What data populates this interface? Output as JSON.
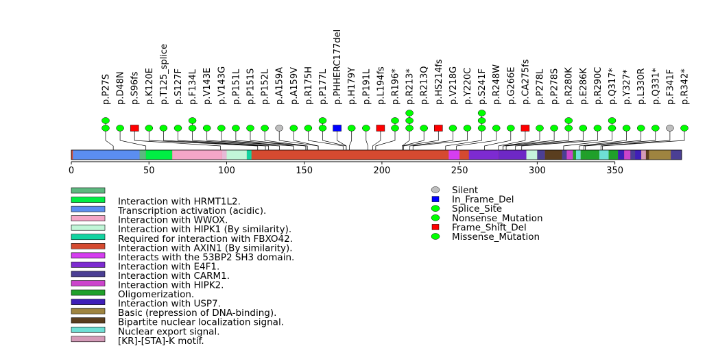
{
  "chart_data": {
    "type": "lollipop",
    "protein_length": 393,
    "axis": {
      "ticks": [
        0,
        50,
        100,
        150,
        200,
        250,
        300,
        350
      ]
    },
    "colors": {
      "Silent": "#bebebe",
      "In_Frame_Del": "#0000ff",
      "Splice_Site": "#00ff00",
      "Nonsense_Mutation": "#00ff00",
      "Frame_Shift_Del": "#ff0000",
      "Missense_Mutation": "#00ff00"
    },
    "mutations": [
      {
        "label": "p.P27S",
        "pos": 27,
        "types": [
          "Missense_Mutation",
          "Missense_Mutation"
        ]
      },
      {
        "label": "p.D48N",
        "pos": 48,
        "types": [
          "Missense_Mutation"
        ]
      },
      {
        "label": "p.S96fs",
        "pos": 96,
        "types": [
          "Frame_Shift_Del"
        ]
      },
      {
        "label": "p.K120E",
        "pos": 120,
        "types": [
          "Missense_Mutation"
        ]
      },
      {
        "label": "p.T125_splice",
        "pos": 125,
        "types": [
          "Splice_Site"
        ]
      },
      {
        "label": "p.S127F",
        "pos": 127,
        "types": [
          "Missense_Mutation"
        ]
      },
      {
        "label": "p.F134L",
        "pos": 134,
        "types": [
          "Missense_Mutation",
          "Missense_Mutation"
        ]
      },
      {
        "label": "p.V143E",
        "pos": 143,
        "types": [
          "Missense_Mutation"
        ]
      },
      {
        "label": "p.V143G",
        "pos": 143,
        "types": [
          "Missense_Mutation"
        ]
      },
      {
        "label": "p.P151L",
        "pos": 151,
        "types": [
          "Missense_Mutation"
        ]
      },
      {
        "label": "p.P151S",
        "pos": 151,
        "types": [
          "Missense_Mutation"
        ]
      },
      {
        "label": "p.P152L",
        "pos": 152,
        "types": [
          "Missense_Mutation"
        ]
      },
      {
        "label": "p.A159A",
        "pos": 159,
        "types": [
          "Silent"
        ]
      },
      {
        "label": "p.A159V",
        "pos": 159,
        "types": [
          "Missense_Mutation"
        ]
      },
      {
        "label": "p.R175H",
        "pos": 175,
        "types": [
          "Missense_Mutation"
        ]
      },
      {
        "label": "p.P177L",
        "pos": 177,
        "types": [
          "Missense_Mutation",
          "Missense_Mutation"
        ]
      },
      {
        "label": "p.PHHERC177del",
        "pos": 177,
        "types": [
          "In_Frame_Del"
        ]
      },
      {
        "label": "p.H179Y",
        "pos": 179,
        "types": [
          "Missense_Mutation"
        ]
      },
      {
        "label": "p.P191L",
        "pos": 191,
        "types": [
          "Missense_Mutation"
        ]
      },
      {
        "label": "p.L194fs",
        "pos": 194,
        "types": [
          "Frame_Shift_Del"
        ]
      },
      {
        "label": "p.R196*",
        "pos": 196,
        "types": [
          "Nonsense_Mutation",
          "Nonsense_Mutation"
        ]
      },
      {
        "label": "p.R213*",
        "pos": 213,
        "types": [
          "Nonsense_Mutation",
          "Nonsense_Mutation",
          "Nonsense_Mutation"
        ]
      },
      {
        "label": "p.R213Q",
        "pos": 213,
        "types": [
          "Missense_Mutation"
        ]
      },
      {
        "label": "p.HS214fs",
        "pos": 214,
        "types": [
          "Frame_Shift_Del"
        ]
      },
      {
        "label": "p.V218G",
        "pos": 218,
        "types": [
          "Missense_Mutation"
        ]
      },
      {
        "label": "p.Y220C",
        "pos": 220,
        "types": [
          "Missense_Mutation"
        ]
      },
      {
        "label": "p.S241F",
        "pos": 241,
        "types": [
          "Missense_Mutation",
          "Missense_Mutation",
          "Missense_Mutation"
        ]
      },
      {
        "label": "p.R248W",
        "pos": 248,
        "types": [
          "Missense_Mutation"
        ]
      },
      {
        "label": "p.G266E",
        "pos": 266,
        "types": [
          "Missense_Mutation"
        ]
      },
      {
        "label": "p.CA275fs",
        "pos": 275,
        "types": [
          "Frame_Shift_Del"
        ]
      },
      {
        "label": "p.P278L",
        "pos": 278,
        "types": [
          "Missense_Mutation"
        ]
      },
      {
        "label": "p.P278S",
        "pos": 278,
        "types": [
          "Missense_Mutation"
        ]
      },
      {
        "label": "p.R280K",
        "pos": 280,
        "types": [
          "Missense_Mutation",
          "Missense_Mutation"
        ]
      },
      {
        "label": "p.E286K",
        "pos": 286,
        "types": [
          "Missense_Mutation"
        ]
      },
      {
        "label": "p.R290C",
        "pos": 290,
        "types": [
          "Missense_Mutation"
        ]
      },
      {
        "label": "p.Q317*",
        "pos": 317,
        "types": [
          "Nonsense_Mutation",
          "Nonsense_Mutation"
        ]
      },
      {
        "label": "p.Y327*",
        "pos": 327,
        "types": [
          "Nonsense_Mutation"
        ]
      },
      {
        "label": "p.L330R",
        "pos": 330,
        "types": [
          "Missense_Mutation"
        ]
      },
      {
        "label": "p.Q331*",
        "pos": 331,
        "types": [
          "Nonsense_Mutation"
        ]
      },
      {
        "label": "p.F341F",
        "pos": 341,
        "types": [
          "Silent"
        ]
      },
      {
        "label": "p.R342*",
        "pos": 342,
        "types": [
          "Nonsense_Mutation"
        ]
      }
    ],
    "regions": [
      {
        "start": 0,
        "end": 393,
        "color": "#d54a30"
      },
      {
        "start": 1,
        "end": 44,
        "color": "#5b8ef0"
      },
      {
        "start": 44,
        "end": 48,
        "color": "#5db87f"
      },
      {
        "start": 48,
        "end": 65,
        "color": "#00ee44"
      },
      {
        "start": 65,
        "end": 97,
        "color": "#f4a6c8"
      },
      {
        "start": 97,
        "end": 100,
        "color": "#e7b8d6"
      },
      {
        "start": 100,
        "end": 113,
        "color": "#c1f6d8"
      },
      {
        "start": 113,
        "end": 116,
        "color": "#13d3a0"
      },
      {
        "start": 243,
        "end": 250,
        "color": "#d53ef0"
      },
      {
        "start": 250,
        "end": 256,
        "color": "#d54a30"
      },
      {
        "start": 256,
        "end": 275,
        "color": "#7d2bd1"
      },
      {
        "start": 275,
        "end": 293,
        "color": "#6e28c6"
      },
      {
        "start": 293,
        "end": 300,
        "color": "#c6f4dc"
      },
      {
        "start": 300,
        "end": 305,
        "color": "#4b3f94"
      },
      {
        "start": 305,
        "end": 316,
        "color": "#5a3e1f"
      },
      {
        "start": 316,
        "end": 319,
        "color": "#4b3f94"
      },
      {
        "start": 319,
        "end": 323,
        "color": "#cc44cc"
      },
      {
        "start": 323,
        "end": 325,
        "color": "#20a02a"
      },
      {
        "start": 325,
        "end": 328,
        "color": "#6ee0d6"
      },
      {
        "start": 328,
        "end": 331,
        "color": "#20a02a"
      },
      {
        "start": 331,
        "end": 338,
        "color": "#1fa02a"
      },
      {
        "start": 338,
        "end": 340,
        "color": "#20a02a"
      },
      {
        "start": 340,
        "end": 346,
        "color": "#6ee0d6"
      },
      {
        "start": 346,
        "end": 352,
        "color": "#20a02a"
      },
      {
        "start": 352,
        "end": 356,
        "color": "#3f1fb8"
      },
      {
        "start": 356,
        "end": 360,
        "color": "#cc44cc"
      },
      {
        "start": 360,
        "end": 363,
        "color": "#4b3f94"
      },
      {
        "start": 363,
        "end": 367,
        "color": "#3f1fb8"
      },
      {
        "start": 367,
        "end": 370,
        "color": "#d49bb8"
      },
      {
        "start": 370,
        "end": 372,
        "color": "#5a3e1f"
      },
      {
        "start": 372,
        "end": 386,
        "color": "#9e8440"
      },
      {
        "start": 386,
        "end": 393,
        "color": "#4b3f94"
      }
    ],
    "domain_legend": [
      {
        "label": "",
        "color": "#5db87f"
      },
      {
        "label": "Interaction with HRMT1L2.",
        "color": "#00ee44"
      },
      {
        "label": "Transcription activation (acidic).",
        "color": "#5b8ef0"
      },
      {
        "label": "Interaction with WWOX.",
        "color": "#f4a6c8"
      },
      {
        "label": "Interaction with HIPK1 (By similarity).",
        "color": "#c1f6d8"
      },
      {
        "label": "Required for interaction with FBXO42.",
        "color": "#13d3a0"
      },
      {
        "label": "Interaction with AXIN1 (By similarity).",
        "color": "#d54a30"
      },
      {
        "label": "Interacts with the 53BP2 SH3 domain.",
        "color": "#d53ef0"
      },
      {
        "label": "Interaction with E4F1.",
        "color": "#7d2bd1"
      },
      {
        "label": "Interaction with CARM1.",
        "color": "#4b3f94"
      },
      {
        "label": "Interaction with HIPK2.",
        "color": "#cc44cc"
      },
      {
        "label": "Oligomerization.",
        "color": "#20a02a"
      },
      {
        "label": "Interaction with USP7.",
        "color": "#3f1fb8"
      },
      {
        "label": "Basic (repression of DNA-binding).",
        "color": "#9e8440"
      },
      {
        "label": "Bipartite nuclear localization signal.",
        "color": "#5a3e1f"
      },
      {
        "label": "Nuclear export signal.",
        "color": "#6ee0d6"
      },
      {
        "label": "[KR]-[STA]-K motif.",
        "color": "#d49bb8"
      }
    ],
    "type_legend": [
      {
        "label": "Silent",
        "shape": "circle",
        "color": "#bebebe"
      },
      {
        "label": "In_Frame_Del",
        "shape": "square",
        "color": "#0000ff"
      },
      {
        "label": "Splice_Site",
        "shape": "circle",
        "color": "#00ff00"
      },
      {
        "label": "Nonsense_Mutation",
        "shape": "circle",
        "color": "#00ff00"
      },
      {
        "label": "Frame_Shift_Del",
        "shape": "square",
        "color": "#ff0000"
      },
      {
        "label": "Missense_Mutation",
        "shape": "circle",
        "color": "#00ff00"
      }
    ]
  }
}
